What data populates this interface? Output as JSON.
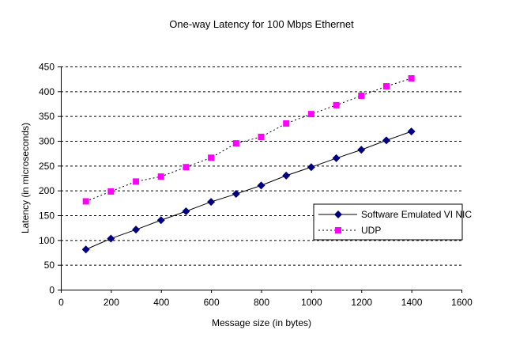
{
  "chart_data": {
    "type": "line",
    "title": "One-way Latency for 100 Mbps Ethernet",
    "xlabel": "Message size (in bytes)",
    "ylabel": "Latency (in microseconds)",
    "xlim": [
      0,
      1600
    ],
    "ylim": [
      0,
      450
    ],
    "xticks": [
      0,
      200,
      400,
      600,
      800,
      1000,
      1200,
      1400,
      1600
    ],
    "yticks": [
      0,
      50,
      100,
      150,
      200,
      250,
      300,
      350,
      400,
      450
    ],
    "grid": "horizontal dashed",
    "legend_position": "right",
    "x": [
      100,
      200,
      300,
      400,
      500,
      600,
      700,
      800,
      900,
      1000,
      1100,
      1200,
      1300,
      1400
    ],
    "series": [
      {
        "name": "Software Emulated VI NIC",
        "color": "#000080",
        "marker": "diamond",
        "line": "solid",
        "values": [
          81,
          103,
          121,
          140,
          158,
          177,
          193,
          210,
          230,
          247,
          265,
          282,
          301,
          319
        ]
      },
      {
        "name": "UDP",
        "color": "#FF00FF",
        "marker": "square",
        "line": "dotted",
        "values": [
          178,
          198,
          218,
          228,
          247,
          266,
          295,
          308,
          335,
          354,
          372,
          391,
          410,
          426
        ]
      }
    ]
  }
}
